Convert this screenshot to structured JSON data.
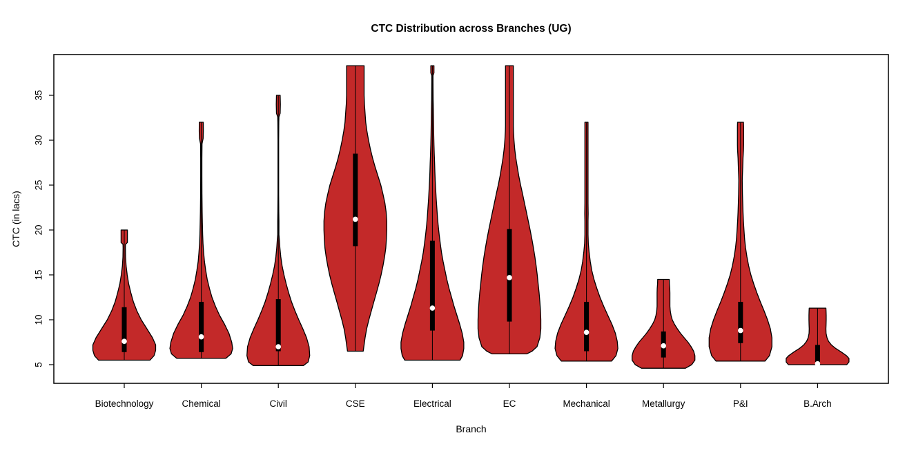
{
  "chart_data": {
    "type": "violin",
    "title": "CTC Distribution across Branches (UG)",
    "xlabel": "Branch",
    "ylabel": "CTC (in lacs)",
    "ylim": [
      2.9,
      39.6
    ],
    "yticks": [
      5,
      10,
      15,
      20,
      25,
      30,
      35
    ],
    "grid": false,
    "legend": "none",
    "categories": [
      "Biotechnology",
      "Chemical",
      "Civil",
      "CSE",
      "Electrical",
      "EC",
      "Mechanical",
      "Metallurgy",
      "P&I",
      "B.Arch"
    ],
    "colors": {
      "violin_fill": "#C32929",
      "violin_stroke": "#000000",
      "box_fill": "#000000",
      "median_dot": "#FFFFFF",
      "axis": "#000000",
      "background": "#FFFFFF"
    },
    "violins": [
      {
        "label": "Biotechnology",
        "min": 5.5,
        "max": 20,
        "q1": 6.4,
        "q3": 11.4,
        "median": 7.6,
        "shape": [
          [
            5.5,
            0.82
          ],
          [
            6,
            0.95
          ],
          [
            6.6,
            1.0
          ],
          [
            7.2,
            1.0
          ],
          [
            8,
            0.9
          ],
          [
            9,
            0.72
          ],
          [
            10,
            0.54
          ],
          [
            11,
            0.4
          ],
          [
            12,
            0.29
          ],
          [
            13,
            0.21
          ],
          [
            14,
            0.14
          ],
          [
            15,
            0.095
          ],
          [
            16,
            0.06
          ],
          [
            17,
            0.042
          ],
          [
            18,
            0.038
          ],
          [
            18.4,
            0.04
          ],
          [
            18.6,
            0.1
          ],
          [
            19.5,
            0.1
          ],
          [
            20,
            0.1
          ]
        ]
      },
      {
        "label": "Chemical",
        "min": 5.7,
        "max": 32,
        "q1": 6.4,
        "q3": 12.0,
        "median": 8.1,
        "shape": [
          [
            5.7,
            0.78
          ],
          [
            6.2,
            0.95
          ],
          [
            6.8,
            1.0
          ],
          [
            7.5,
            0.97
          ],
          [
            8.5,
            0.88
          ],
          [
            9.5,
            0.74
          ],
          [
            10.5,
            0.58
          ],
          [
            11.5,
            0.45
          ],
          [
            12.5,
            0.34
          ],
          [
            13.5,
            0.26
          ],
          [
            14.5,
            0.19
          ],
          [
            15.5,
            0.14
          ],
          [
            16.5,
            0.1
          ],
          [
            17.5,
            0.075
          ],
          [
            18.5,
            0.055
          ],
          [
            19.5,
            0.045
          ],
          [
            20.8,
            0.035
          ],
          [
            22,
            0.028
          ],
          [
            24,
            0.022
          ],
          [
            26,
            0.02
          ],
          [
            28,
            0.02
          ],
          [
            29.6,
            0.024
          ],
          [
            30.2,
            0.06
          ],
          [
            31,
            0.065
          ],
          [
            32,
            0.063
          ]
        ]
      },
      {
        "label": "Civil",
        "min": 4.9,
        "max": 35,
        "q1": 6.5,
        "q3": 12.3,
        "median": 7.0,
        "shape": [
          [
            4.9,
            0.8
          ],
          [
            5.3,
            0.95
          ],
          [
            6,
            1.0
          ],
          [
            7,
            0.98
          ],
          [
            8,
            0.9
          ],
          [
            9,
            0.78
          ],
          [
            10,
            0.65
          ],
          [
            11,
            0.53
          ],
          [
            12,
            0.42
          ],
          [
            13,
            0.33
          ],
          [
            14,
            0.25
          ],
          [
            15,
            0.18
          ],
          [
            16,
            0.12
          ],
          [
            17,
            0.08
          ],
          [
            18,
            0.05
          ],
          [
            18.8,
            0.035
          ],
          [
            19.5,
            0.02
          ],
          [
            21,
            0.02
          ],
          [
            22,
            0.015
          ],
          [
            24,
            0.012
          ],
          [
            26,
            0.012
          ],
          [
            28,
            0.012
          ],
          [
            30,
            0.012
          ],
          [
            32,
            0.015
          ],
          [
            32.6,
            0.02
          ],
          [
            33,
            0.06
          ],
          [
            34,
            0.065
          ],
          [
            35,
            0.06
          ]
        ]
      },
      {
        "label": "CSE",
        "min": 6.5,
        "max": 38.3,
        "q1": 18.2,
        "q3": 28.5,
        "median": 21.2,
        "shape": [
          [
            6.5,
            0.25
          ],
          [
            7,
            0.27
          ],
          [
            8,
            0.31
          ],
          [
            9,
            0.36
          ],
          [
            10,
            0.43
          ],
          [
            11,
            0.51
          ],
          [
            12,
            0.59
          ],
          [
            13,
            0.67
          ],
          [
            14,
            0.75
          ],
          [
            15,
            0.82
          ],
          [
            16,
            0.88
          ],
          [
            17,
            0.93
          ],
          [
            18,
            0.97
          ],
          [
            19,
            0.99
          ],
          [
            20,
            1.0
          ],
          [
            21,
            1.0
          ],
          [
            22,
            0.98
          ],
          [
            23,
            0.94
          ],
          [
            24,
            0.88
          ],
          [
            25,
            0.81
          ],
          [
            26,
            0.72
          ],
          [
            27,
            0.63
          ],
          [
            28,
            0.55
          ],
          [
            29,
            0.48
          ],
          [
            30,
            0.42
          ],
          [
            31,
            0.37
          ],
          [
            32,
            0.33
          ],
          [
            33,
            0.31
          ],
          [
            34,
            0.29
          ],
          [
            35,
            0.28
          ],
          [
            36,
            0.28
          ],
          [
            37,
            0.28
          ],
          [
            38.3,
            0.28
          ]
        ]
      },
      {
        "label": "Electrical",
        "min": 5.5,
        "max": 38.3,
        "q1": 8.8,
        "q3": 18.8,
        "median": 11.3,
        "shape": [
          [
            5.5,
            0.88
          ],
          [
            6,
            0.96
          ],
          [
            6.8,
            1.0
          ],
          [
            7.5,
            1.0
          ],
          [
            8.5,
            0.95
          ],
          [
            9.5,
            0.87
          ],
          [
            10.5,
            0.78
          ],
          [
            11.5,
            0.69
          ],
          [
            12.5,
            0.61
          ],
          [
            13.5,
            0.53
          ],
          [
            14.5,
            0.46
          ],
          [
            15.5,
            0.4
          ],
          [
            16.5,
            0.34
          ],
          [
            17.5,
            0.29
          ],
          [
            18.5,
            0.25
          ],
          [
            19.5,
            0.215
          ],
          [
            20.5,
            0.185
          ],
          [
            21.5,
            0.16
          ],
          [
            22.5,
            0.14
          ],
          [
            23.5,
            0.12
          ],
          [
            24.5,
            0.105
          ],
          [
            25.5,
            0.09
          ],
          [
            26.5,
            0.08
          ],
          [
            27.5,
            0.07
          ],
          [
            28.5,
            0.06
          ],
          [
            29.5,
            0.05
          ],
          [
            30.5,
            0.045
          ],
          [
            31.5,
            0.04
          ],
          [
            32.5,
            0.035
          ],
          [
            33.5,
            0.03
          ],
          [
            34.5,
            0.025
          ],
          [
            35.5,
            0.022
          ],
          [
            36.5,
            0.02
          ],
          [
            37.2,
            0.02
          ],
          [
            37.5,
            0.05
          ],
          [
            38.3,
            0.05
          ]
        ]
      },
      {
        "label": "EC",
        "min": 6.2,
        "max": 38.3,
        "q1": 9.8,
        "q3": 20.1,
        "median": 14.7,
        "shape": [
          [
            6.2,
            0.55
          ],
          [
            6.5,
            0.72
          ],
          [
            7,
            0.88
          ],
          [
            8,
            0.97
          ],
          [
            9,
            1.0
          ],
          [
            10,
            1.0
          ],
          [
            11,
            0.99
          ],
          [
            12,
            0.97
          ],
          [
            13,
            0.945
          ],
          [
            14,
            0.915
          ],
          [
            15,
            0.885
          ],
          [
            16,
            0.85
          ],
          [
            17,
            0.81
          ],
          [
            18,
            0.765
          ],
          [
            19,
            0.715
          ],
          [
            20,
            0.66
          ],
          [
            21,
            0.6
          ],
          [
            22,
            0.54
          ],
          [
            23,
            0.48
          ],
          [
            24,
            0.42
          ],
          [
            25,
            0.355
          ],
          [
            26,
            0.3
          ],
          [
            27,
            0.25
          ],
          [
            28,
            0.205
          ],
          [
            29,
            0.17
          ],
          [
            30,
            0.145
          ],
          [
            31,
            0.13
          ],
          [
            31.6,
            0.125
          ],
          [
            33,
            0.125
          ],
          [
            35,
            0.125
          ],
          [
            37,
            0.125
          ],
          [
            38.3,
            0.125
          ]
        ]
      },
      {
        "label": "Mechanical",
        "min": 5.4,
        "max": 32,
        "q1": 6.5,
        "q3": 12.0,
        "median": 8.6,
        "shape": [
          [
            5.4,
            0.8
          ],
          [
            6,
            0.94
          ],
          [
            6.8,
            1.0
          ],
          [
            7.6,
            0.98
          ],
          [
            8.5,
            0.92
          ],
          [
            9.5,
            0.81
          ],
          [
            10.5,
            0.68
          ],
          [
            11.5,
            0.55
          ],
          [
            12.5,
            0.43
          ],
          [
            13.5,
            0.33
          ],
          [
            14.5,
            0.24
          ],
          [
            15.5,
            0.17
          ],
          [
            16.5,
            0.12
          ],
          [
            17.5,
            0.085
          ],
          [
            18.5,
            0.06
          ],
          [
            19.5,
            0.05
          ],
          [
            21,
            0.05
          ],
          [
            21.8,
            0.055
          ],
          [
            23,
            0.05
          ],
          [
            25,
            0.05
          ],
          [
            27,
            0.05
          ],
          [
            29,
            0.05
          ],
          [
            31,
            0.05
          ],
          [
            32,
            0.05
          ]
        ]
      },
      {
        "label": "Metallurgy",
        "min": 4.6,
        "max": 14.5,
        "q1": 5.8,
        "q3": 8.7,
        "median": 7.1,
        "shape": [
          [
            4.6,
            0.7
          ],
          [
            5,
            0.9
          ],
          [
            5.5,
            1.0
          ],
          [
            6,
            1.0
          ],
          [
            6.5,
            0.96
          ],
          [
            7,
            0.88
          ],
          [
            7.5,
            0.78
          ],
          [
            8,
            0.66
          ],
          [
            8.5,
            0.54
          ],
          [
            9,
            0.44
          ],
          [
            9.5,
            0.35
          ],
          [
            10,
            0.28
          ],
          [
            10.5,
            0.24
          ],
          [
            11,
            0.215
          ],
          [
            11.5,
            0.205
          ],
          [
            12.5,
            0.205
          ],
          [
            13,
            0.205
          ],
          [
            13.5,
            0.2
          ],
          [
            14,
            0.19
          ],
          [
            14.5,
            0.185
          ]
        ]
      },
      {
        "label": "P&I",
        "min": 5.4,
        "max": 32,
        "q1": 7.4,
        "q3": 12.0,
        "median": 8.8,
        "shape": [
          [
            5.4,
            0.78
          ],
          [
            6,
            0.92
          ],
          [
            7,
            1.0
          ],
          [
            8,
            1.0
          ],
          [
            9,
            0.95
          ],
          [
            10,
            0.86
          ],
          [
            11,
            0.75
          ],
          [
            12,
            0.63
          ],
          [
            13,
            0.52
          ],
          [
            14,
            0.42
          ],
          [
            15,
            0.33
          ],
          [
            16,
            0.26
          ],
          [
            17,
            0.205
          ],
          [
            18,
            0.16
          ],
          [
            19,
            0.13
          ],
          [
            20,
            0.11
          ],
          [
            21,
            0.092
          ],
          [
            22,
            0.08
          ],
          [
            23,
            0.07
          ],
          [
            24,
            0.062
          ],
          [
            25,
            0.058
          ],
          [
            25.5,
            0.055
          ],
          [
            26,
            0.06
          ],
          [
            27,
            0.07
          ],
          [
            28,
            0.08
          ],
          [
            28.9,
            0.095
          ],
          [
            29.5,
            0.1
          ],
          [
            30.5,
            0.1
          ],
          [
            31.5,
            0.1
          ],
          [
            32,
            0.095
          ]
        ]
      },
      {
        "label": "B.Arch",
        "min": 5.0,
        "max": 11.3,
        "q1": 5.3,
        "q3": 7.2,
        "median": 5.1,
        "shape": [
          [
            5.0,
            0.93
          ],
          [
            5.3,
            1.0
          ],
          [
            5.7,
            1.0
          ],
          [
            6,
            0.92
          ],
          [
            6.4,
            0.76
          ],
          [
            6.8,
            0.58
          ],
          [
            7.2,
            0.44
          ],
          [
            7.6,
            0.35
          ],
          [
            8,
            0.3
          ],
          [
            8.5,
            0.27
          ],
          [
            9,
            0.265
          ],
          [
            9.4,
            0.27
          ],
          [
            10,
            0.275
          ],
          [
            10.5,
            0.275
          ],
          [
            11,
            0.27
          ],
          [
            11.3,
            0.265
          ]
        ]
      }
    ]
  }
}
